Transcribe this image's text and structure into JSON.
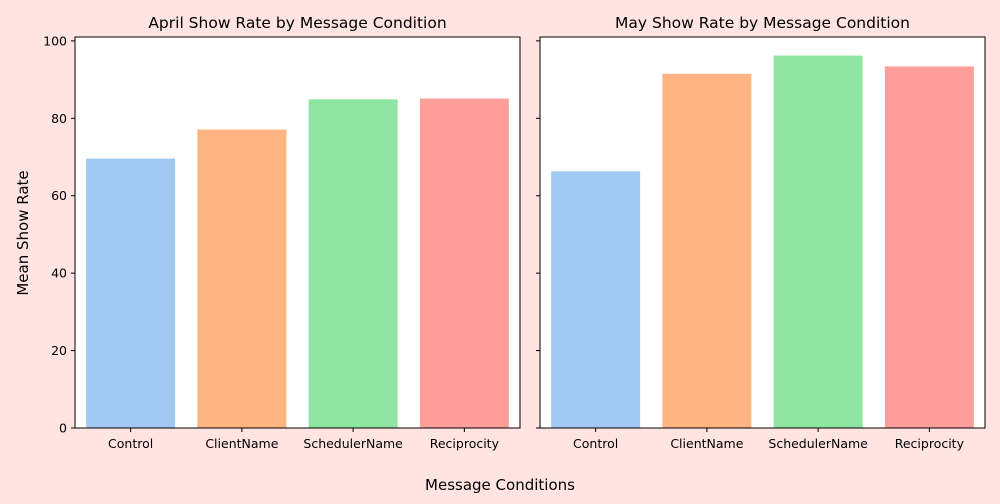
{
  "figure": {
    "background": "#ffe4e1",
    "supxlabel": "Message Conditions",
    "supylabel": "Mean Show Rate"
  },
  "colors": {
    "Control": "#a1c9f4",
    "ClientName": "#ffb482",
    "SchedulerName": "#8de5a1",
    "Reciprocity": "#ff9f9b"
  },
  "chart_data": [
    {
      "type": "bar",
      "title": "April Show Rate by Message Condition",
      "xlabel": "",
      "ylabel": "Mean Show Rate",
      "categories": [
        "Control",
        "ClientName",
        "SchedulerName",
        "Reciprocity"
      ],
      "values": [
        69.6,
        77.1,
        84.9,
        85.1
      ],
      "ylim": [
        0,
        101
      ],
      "yticks": [
        0,
        20,
        40,
        60,
        80,
        100
      ],
      "grid": false
    },
    {
      "type": "bar",
      "title": "May Show Rate by Message Condition",
      "xlabel": "",
      "ylabel": "",
      "categories": [
        "Control",
        "ClientName",
        "SchedulerName",
        "Reciprocity"
      ],
      "values": [
        66.3,
        91.5,
        96.2,
        93.4
      ],
      "ylim": [
        0,
        101
      ],
      "yticks": [
        0,
        20,
        40,
        60,
        80,
        100
      ],
      "grid": false,
      "sharey": true
    }
  ]
}
